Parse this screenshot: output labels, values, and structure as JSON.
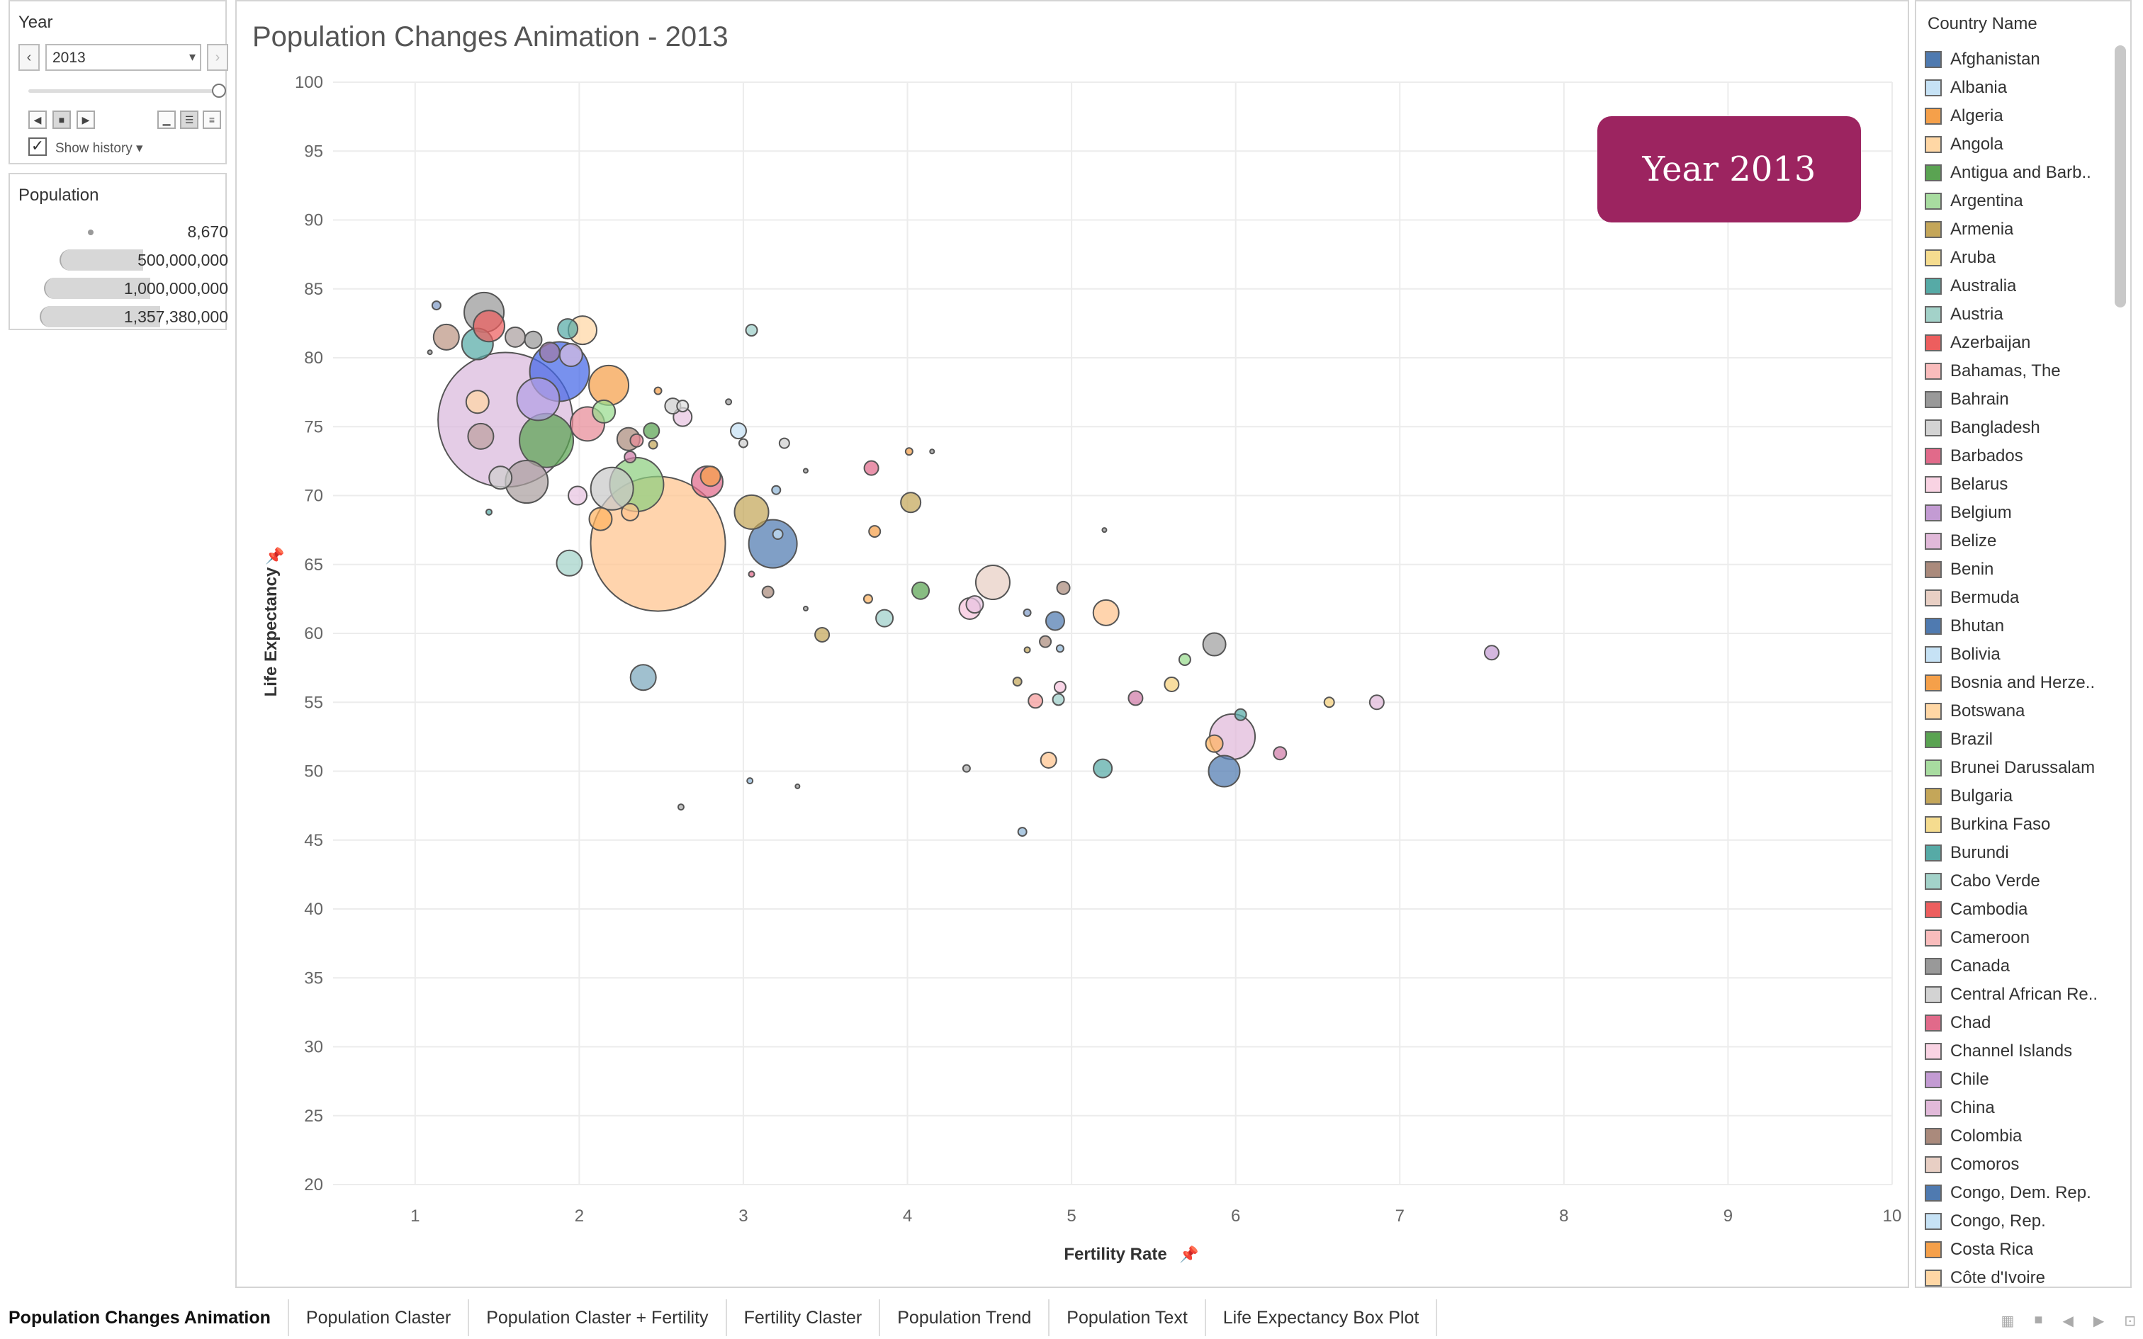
{
  "filter": {
    "title": "Year",
    "selected_year": "2013",
    "show_history_label": "Show history"
  },
  "population_legend": {
    "title": "Population",
    "values": [
      "8,670",
      "500,000,000",
      "1,000,000,000",
      "1,357,380,000"
    ]
  },
  "chart": {
    "title": "Population Changes Animation - 2013",
    "year_card": "Year 2013"
  },
  "chart_data": {
    "type": "scatter",
    "xlabel": "Fertility Rate",
    "ylabel": "Life Expectancy",
    "xlim": [
      0.5,
      10
    ],
    "ylim": [
      20,
      100
    ],
    "xticks": [
      "1",
      "2",
      "3",
      "4",
      "5",
      "6",
      "7",
      "8",
      "9",
      "10"
    ],
    "yticks": [
      "20",
      "25",
      "30",
      "35",
      "40",
      "45",
      "50",
      "55",
      "60",
      "65",
      "70",
      "75",
      "80",
      "85",
      "90",
      "95",
      "100"
    ],
    "points": [
      {
        "x": 1.55,
        "y": 75.5,
        "r": 95,
        "c": "#d9b8dc"
      },
      {
        "x": 2.48,
        "y": 66.5,
        "r": 95,
        "c": "#ffc48e"
      },
      {
        "x": 1.88,
        "y": 79.0,
        "r": 42,
        "c": "#4466e8"
      },
      {
        "x": 1.8,
        "y": 74.0,
        "r": 38,
        "c": "#5aa352"
      },
      {
        "x": 2.35,
        "y": 70.8,
        "r": 38,
        "c": "#8dce7f"
      },
      {
        "x": 1.75,
        "y": 77.0,
        "r": 30,
        "c": "#b3a0e4"
      },
      {
        "x": 1.42,
        "y": 83.3,
        "r": 28,
        "c": "#999999"
      },
      {
        "x": 1.68,
        "y": 71.0,
        "r": 30,
        "c": "#aa9f9f"
      },
      {
        "x": 2.2,
        "y": 70.5,
        "r": 30,
        "c": "#c9c9c9"
      },
      {
        "x": 3.18,
        "y": 66.5,
        "r": 34,
        "c": "#4f7ab0"
      },
      {
        "x": 2.18,
        "y": 78.0,
        "r": 28,
        "c": "#f5a04a"
      },
      {
        "x": 2.05,
        "y": 75.2,
        "r": 24,
        "c": "#e78a97"
      },
      {
        "x": 1.38,
        "y": 81.0,
        "r": 22,
        "c": "#56aaa6"
      },
      {
        "x": 1.45,
        "y": 82.3,
        "r": 22,
        "c": "#ed5e5e"
      },
      {
        "x": 2.02,
        "y": 82.0,
        "r": 20,
        "c": "#ffd7a5"
      },
      {
        "x": 3.05,
        "y": 68.8,
        "r": 24,
        "c": "#c4a659"
      },
      {
        "x": 4.52,
        "y": 63.7,
        "r": 24,
        "c": "#e8cfc4"
      },
      {
        "x": 5.98,
        "y": 52.5,
        "r": 32,
        "c": "#e1b9d9"
      },
      {
        "x": 5.93,
        "y": 50.0,
        "r": 22,
        "c": "#4f7ab0"
      },
      {
        "x": 5.87,
        "y": 59.2,
        "r": 16,
        "c": "#a0a0a0"
      },
      {
        "x": 5.21,
        "y": 61.5,
        "r": 18,
        "c": "#ffc48e"
      },
      {
        "x": 1.94,
        "y": 65.1,
        "r": 18,
        "c": "#a3d2c9"
      },
      {
        "x": 2.39,
        "y": 56.8,
        "r": 18,
        "c": "#7ba8bc"
      },
      {
        "x": 2.78,
        "y": 71.0,
        "r": 22,
        "c": "#e16a8a"
      },
      {
        "x": 2.8,
        "y": 71.4,
        "r": 14,
        "c": "#f5a04a"
      },
      {
        "x": 1.19,
        "y": 81.5,
        "r": 18,
        "c": "#bc9684"
      },
      {
        "x": 1.38,
        "y": 76.8,
        "r": 16,
        "c": "#ffd7a5"
      },
      {
        "x": 1.4,
        "y": 74.3,
        "r": 18,
        "c": "#bda0a0"
      },
      {
        "x": 1.52,
        "y": 71.3,
        "r": 16,
        "c": "#cfcfcf"
      },
      {
        "x": 2.13,
        "y": 68.3,
        "r": 16,
        "c": "#ffb35f"
      },
      {
        "x": 2.3,
        "y": 74.1,
        "r": 16,
        "c": "#aa8a7c"
      },
      {
        "x": 2.15,
        "y": 76.1,
        "r": 16,
        "c": "#98db8d"
      },
      {
        "x": 1.95,
        "y": 80.2,
        "r": 16,
        "c": "#d6bde0"
      },
      {
        "x": 1.72,
        "y": 81.3,
        "r": 12,
        "c": "#999999"
      },
      {
        "x": 1.61,
        "y": 81.5,
        "r": 14,
        "c": "#aaa0a0"
      },
      {
        "x": 1.93,
        "y": 82.1,
        "r": 14,
        "c": "#56aaa6"
      },
      {
        "x": 1.82,
        "y": 80.4,
        "r": 14,
        "c": "#a07ba8"
      },
      {
        "x": 2.63,
        "y": 75.7,
        "r": 13,
        "c": "#e8c3e0"
      },
      {
        "x": 2.57,
        "y": 76.5,
        "r": 11,
        "c": "#cfcfcf"
      },
      {
        "x": 2.97,
        "y": 74.7,
        "r": 11,
        "c": "#c6e2f5"
      },
      {
        "x": 3.05,
        "y": 82.0,
        "r": 8,
        "c": "#9ccfc9"
      },
      {
        "x": 2.44,
        "y": 74.7,
        "r": 11,
        "c": "#5aa352"
      },
      {
        "x": 1.99,
        "y": 70.0,
        "r": 13,
        "c": "#e8c3e0"
      },
      {
        "x": 2.31,
        "y": 68.8,
        "r": 12,
        "c": "#ffc48e"
      },
      {
        "x": 4.02,
        "y": 69.5,
        "r": 14,
        "c": "#c4a659"
      },
      {
        "x": 3.78,
        "y": 72.0,
        "r": 10,
        "c": "#e16a8a"
      },
      {
        "x": 3.8,
        "y": 67.4,
        "r": 8,
        "c": "#f5a04a"
      },
      {
        "x": 4.08,
        "y": 63.1,
        "r": 12,
        "c": "#5aa352"
      },
      {
        "x": 3.86,
        "y": 61.1,
        "r": 12,
        "c": "#9ccfc9"
      },
      {
        "x": 4.38,
        "y": 61.8,
        "r": 15,
        "c": "#f7c4dc"
      },
      {
        "x": 4.41,
        "y": 62.1,
        "r": 12,
        "c": "#e8c3e0"
      },
      {
        "x": 4.9,
        "y": 60.9,
        "r": 13,
        "c": "#4f7ab0"
      },
      {
        "x": 4.95,
        "y": 63.3,
        "r": 9,
        "c": "#aa8a7c"
      },
      {
        "x": 4.84,
        "y": 59.4,
        "r": 8,
        "c": "#aa8a7c"
      },
      {
        "x": 4.78,
        "y": 55.1,
        "r": 10,
        "c": "#f59a9a"
      },
      {
        "x": 4.93,
        "y": 56.1,
        "r": 8,
        "c": "#f7c4dc"
      },
      {
        "x": 4.92,
        "y": 55.2,
        "r": 8,
        "c": "#9ccfc9"
      },
      {
        "x": 4.86,
        "y": 50.8,
        "r": 11,
        "c": "#ffc48e"
      },
      {
        "x": 5.19,
        "y": 50.2,
        "r": 13,
        "c": "#56aaa6"
      },
      {
        "x": 5.39,
        "y": 55.3,
        "r": 10,
        "c": "#d07ba8"
      },
      {
        "x": 5.61,
        "y": 56.3,
        "r": 10,
        "c": "#f5d07a"
      },
      {
        "x": 5.69,
        "y": 58.1,
        "r": 8,
        "c": "#98db8d"
      },
      {
        "x": 5.87,
        "y": 52.0,
        "r": 12,
        "c": "#ffb35f"
      },
      {
        "x": 6.03,
        "y": 54.1,
        "r": 8,
        "c": "#56aaa6"
      },
      {
        "x": 6.27,
        "y": 51.3,
        "r": 9,
        "c": "#d07ba8"
      },
      {
        "x": 6.57,
        "y": 55.0,
        "r": 7,
        "c": "#f5d07a"
      },
      {
        "x": 6.86,
        "y": 55.0,
        "r": 10,
        "c": "#e1b9d9"
      },
      {
        "x": 7.56,
        "y": 58.6,
        "r": 10,
        "c": "#c39bd3"
      },
      {
        "x": 3.48,
        "y": 59.9,
        "r": 10,
        "c": "#c4a659"
      },
      {
        "x": 3.15,
        "y": 63.0,
        "r": 8,
        "c": "#aa8a7c"
      },
      {
        "x": 3.21,
        "y": 67.2,
        "r": 7,
        "c": "#c6e2f5"
      },
      {
        "x": 2.35,
        "y": 74.0,
        "r": 9,
        "c": "#e78a97"
      },
      {
        "x": 2.63,
        "y": 76.5,
        "r": 8,
        "c": "#dcdcdc"
      },
      {
        "x": 2.48,
        "y": 77.6,
        "r": 5,
        "c": "#f5a04a"
      },
      {
        "x": 2.62,
        "y": 47.4,
        "r": 4,
        "c": "#aaaaaa"
      },
      {
        "x": 4.7,
        "y": 45.6,
        "r": 6,
        "c": "#8fb5d7"
      },
      {
        "x": 4.36,
        "y": 50.2,
        "r": 5,
        "c": "#aaaaaa"
      },
      {
        "x": 4.67,
        "y": 56.5,
        "r": 6,
        "c": "#c4a659"
      },
      {
        "x": 4.73,
        "y": 61.5,
        "r": 5,
        "c": "#7f9bc7"
      },
      {
        "x": 5.2,
        "y": 67.5,
        "r": 3,
        "c": "#999999"
      },
      {
        "x": 4.01,
        "y": 73.2,
        "r": 5,
        "c": "#f5a04a"
      },
      {
        "x": 4.15,
        "y": 73.2,
        "r": 3,
        "c": "#999999"
      },
      {
        "x": 3.25,
        "y": 73.8,
        "r": 7,
        "c": "#cfcfcf"
      },
      {
        "x": 3.0,
        "y": 73.8,
        "r": 6,
        "c": "#cfcfcf"
      },
      {
        "x": 2.91,
        "y": 76.8,
        "r": 4,
        "c": "#999999"
      },
      {
        "x": 1.13,
        "y": 83.8,
        "r": 6,
        "c": "#7f9bc7"
      },
      {
        "x": 1.09,
        "y": 80.4,
        "r": 3,
        "c": "#999999"
      },
      {
        "x": 1.45,
        "y": 68.8,
        "r": 4,
        "c": "#56aaa6"
      },
      {
        "x": 2.45,
        "y": 73.7,
        "r": 6,
        "c": "#c4a659"
      },
      {
        "x": 2.31,
        "y": 72.8,
        "r": 8,
        "c": "#d07ba8"
      },
      {
        "x": 3.38,
        "y": 71.8,
        "r": 3,
        "c": "#999999"
      },
      {
        "x": 3.2,
        "y": 70.4,
        "r": 6,
        "c": "#8fb5d7"
      },
      {
        "x": 3.04,
        "y": 49.3,
        "r": 4,
        "c": "#8fb5d7"
      },
      {
        "x": 3.33,
        "y": 48.9,
        "r": 3,
        "c": "#999999"
      },
      {
        "x": 3.05,
        "y": 64.3,
        "r": 4,
        "c": "#e16a8a"
      },
      {
        "x": 3.38,
        "y": 61.8,
        "r": 3,
        "c": "#999999"
      },
      {
        "x": 3.76,
        "y": 62.5,
        "r": 6,
        "c": "#ffb35f"
      },
      {
        "x": 4.93,
        "y": 58.9,
        "r": 5,
        "c": "#8fb5d7"
      },
      {
        "x": 4.73,
        "y": 58.8,
        "r": 4,
        "c": "#c4a659"
      }
    ]
  },
  "legend": {
    "title": "Country Name",
    "items": [
      {
        "label": "Afghanistan",
        "color": "#4f7ab0"
      },
      {
        "label": "Albania",
        "color": "#c6e2f5"
      },
      {
        "label": "Algeria",
        "color": "#f5a04a"
      },
      {
        "label": "Angola",
        "color": "#ffd7a5"
      },
      {
        "label": "Antigua and Barb..",
        "color": "#5aa352"
      },
      {
        "label": "Argentina",
        "color": "#a8dca0"
      },
      {
        "label": "Armenia",
        "color": "#c4a659"
      },
      {
        "label": "Aruba",
        "color": "#f5dc8f"
      },
      {
        "label": "Australia",
        "color": "#56aaa6"
      },
      {
        "label": "Austria",
        "color": "#a3d2c9"
      },
      {
        "label": "Azerbaijan",
        "color": "#ed5e5e"
      },
      {
        "label": "Bahamas, The",
        "color": "#f9bcbc"
      },
      {
        "label": "Bahrain",
        "color": "#999999"
      },
      {
        "label": "Bangladesh",
        "color": "#d3d3d3"
      },
      {
        "label": "Barbados",
        "color": "#e16a8a"
      },
      {
        "label": "Belarus",
        "color": "#f9d3e3"
      },
      {
        "label": "Belgium",
        "color": "#c39bd3"
      },
      {
        "label": "Belize",
        "color": "#e1b9d9"
      },
      {
        "label": "Benin",
        "color": "#aa8a7c"
      },
      {
        "label": "Bermuda",
        "color": "#e8cfc4"
      },
      {
        "label": "Bhutan",
        "color": "#4f7ab0"
      },
      {
        "label": "Bolivia",
        "color": "#c6e2f5"
      },
      {
        "label": "Bosnia and Herze..",
        "color": "#f5a04a"
      },
      {
        "label": "Botswana",
        "color": "#ffd7a5"
      },
      {
        "label": "Brazil",
        "color": "#5aa352"
      },
      {
        "label": "Brunei Darussalam",
        "color": "#a8dca0"
      },
      {
        "label": "Bulgaria",
        "color": "#c4a659"
      },
      {
        "label": "Burkina Faso",
        "color": "#f5dc8f"
      },
      {
        "label": "Burundi",
        "color": "#56aaa6"
      },
      {
        "label": "Cabo Verde",
        "color": "#a3d2c9"
      },
      {
        "label": "Cambodia",
        "color": "#ed5e5e"
      },
      {
        "label": "Cameroon",
        "color": "#f9bcbc"
      },
      {
        "label": "Canada",
        "color": "#999999"
      },
      {
        "label": "Central African Re..",
        "color": "#d3d3d3"
      },
      {
        "label": "Chad",
        "color": "#e16a8a"
      },
      {
        "label": "Channel Islands",
        "color": "#f9d3e3"
      },
      {
        "label": "Chile",
        "color": "#c39bd3"
      },
      {
        "label": "China",
        "color": "#e1b9d9"
      },
      {
        "label": "Colombia",
        "color": "#aa8a7c"
      },
      {
        "label": "Comoros",
        "color": "#e8cfc4"
      },
      {
        "label": "Congo, Dem. Rep.",
        "color": "#4f7ab0"
      },
      {
        "label": "Congo, Rep.",
        "color": "#c6e2f5"
      },
      {
        "label": "Costa Rica",
        "color": "#f5a04a"
      },
      {
        "label": "Côte d'Ivoire",
        "color": "#ffd7a5"
      }
    ]
  },
  "tabs": [
    "Population Changes Animation",
    "Population Claster",
    "Population Claster + Fertility",
    "Fertility Claster",
    "Population Trend",
    "Population Text",
    "Life Expectancy Box Plot"
  ]
}
